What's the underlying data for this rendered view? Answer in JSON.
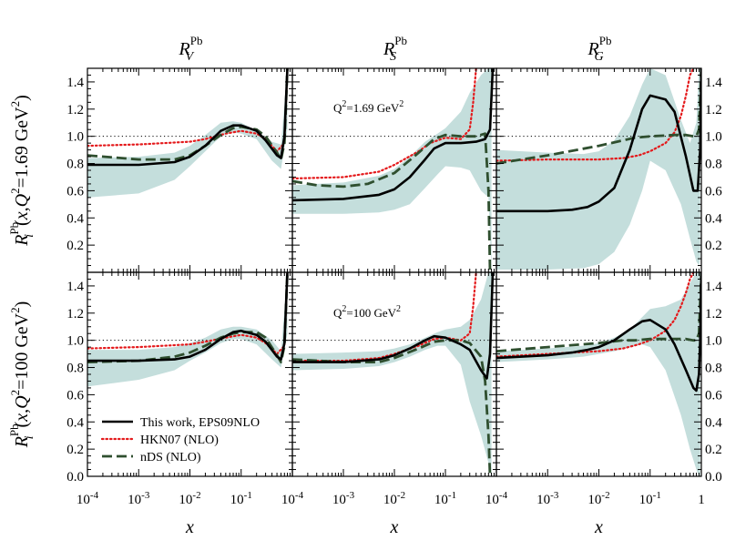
{
  "chart_data": {
    "type": "line",
    "layout": "grid 2 rows x 3 columns",
    "xscale": "log",
    "xlim": [
      0.0001,
      1
    ],
    "x_ticks": [
      {
        "b": "10",
        "e": "-4"
      },
      {
        "b": "10",
        "e": "-3"
      },
      {
        "b": "10",
        "e": "-2"
      },
      {
        "b": "10",
        "e": "-1"
      },
      {
        "b": "10",
        "e": "-4"
      }
    ],
    "x_ticks_last": [
      {
        "b": "10",
        "e": "-4"
      },
      {
        "b": "10",
        "e": "-3"
      },
      {
        "b": "10",
        "e": "-2"
      },
      {
        "b": "10",
        "e": "-1"
      },
      {
        "b": "1",
        "e": ""
      }
    ],
    "xlabel": "x",
    "ylim": [
      0,
      1.5
    ],
    "y_ticks": [
      "0.0",
      "0.2",
      "0.4",
      "0.6",
      "0.8",
      "1.0",
      "1.2",
      "1.4"
    ],
    "y_ticks_top": [
      "0.2",
      "0.4",
      "0.6",
      "0.8",
      "1.0",
      "1.2",
      "1.4"
    ],
    "reference_line_y": 1.0,
    "column_titles": [
      {
        "base": "R",
        "sup": "Pb",
        "sub": "V"
      },
      {
        "base": "R",
        "sup": "Pb",
        "sub": "S"
      },
      {
        "base": "R",
        "sup": "Pb",
        "sub": "G"
      }
    ],
    "row_labels": [
      {
        "base": "R",
        "sup": "Pb",
        "sub": "i",
        "args": "(x,Q",
        "sq": "2",
        "eq": "=1.69 GeV",
        "sq2": "2",
        "close": ")"
      },
      {
        "base": "R",
        "sup": "Pb",
        "sub": "i",
        "args": "(x,Q",
        "sq": "2",
        "eq": "=100 GeV",
        "sq2": "2",
        "close": ")"
      }
    ],
    "annotations": [
      {
        "row": 0,
        "col": 1,
        "pre": "Q",
        "sq": "2",
        "post": "=1.69 GeV",
        "sq2": "2"
      },
      {
        "row": 1,
        "col": 1,
        "pre": "Q",
        "sq": "2",
        "post": "=100 GeV",
        "sq2": "2"
      }
    ],
    "legend": {
      "position": "lower-left of bottom-left panel",
      "entries": [
        "This work, EPS09NLO",
        "HKN07 (NLO)",
        "nDS (NLO)"
      ]
    },
    "series_styles": [
      {
        "name": "This work, EPS09NLO",
        "color": "#000000",
        "dash": "solid",
        "width": 2.6
      },
      {
        "name": "HKN07 (NLO)",
        "color": "#e41a1c",
        "dash": "dotted",
        "width": 2.2
      },
      {
        "name": "nDS (NLO)",
        "color": "#2f4f2f",
        "dash": "dashed",
        "width": 2.8
      }
    ],
    "band_color": "#c4dedc",
    "panels": [
      {
        "row": 0,
        "col": 0,
        "band_x": [
          0.0001,
          0.001,
          0.005,
          0.01,
          0.02,
          0.04,
          0.07,
          0.1,
          0.2,
          0.4,
          0.6,
          0.8
        ],
        "band_upper": [
          0.84,
          0.85,
          0.88,
          0.93,
          1.01,
          1.1,
          1.11,
          1.1,
          1.04,
          0.96,
          0.94,
          1.5
        ],
        "band_lower": [
          0.55,
          0.58,
          0.68,
          0.78,
          0.89,
          1.0,
          1.03,
          1.02,
          0.98,
          0.82,
          0.76,
          1.05
        ],
        "series": [
          {
            "x": [
              0.0001,
              0.001,
              0.005,
              0.01,
              0.02,
              0.04,
              0.07,
              0.1,
              0.2,
              0.3,
              0.5,
              0.6,
              0.7,
              0.8
            ],
            "y": [
              0.79,
              0.79,
              0.81,
              0.85,
              0.93,
              1.04,
              1.08,
              1.08,
              1.04,
              0.97,
              0.86,
              0.84,
              1.0,
              1.5
            ]
          },
          {
            "x": [
              0.0001,
              0.001,
              0.01,
              0.02,
              0.05,
              0.1,
              0.2,
              0.3,
              0.5,
              0.7,
              0.8
            ],
            "y": [
              0.93,
              0.94,
              0.96,
              0.98,
              1.02,
              1.04,
              1.02,
              0.98,
              0.89,
              0.95,
              1.5
            ]
          },
          {
            "x": [
              0.0001,
              0.001,
              0.005,
              0.01,
              0.02,
              0.04,
              0.07,
              0.1,
              0.2,
              0.3,
              0.5,
              0.6,
              0.7,
              0.8
            ],
            "y": [
              0.86,
              0.83,
              0.83,
              0.86,
              0.93,
              1.01,
              1.06,
              1.07,
              1.05,
              1.0,
              0.88,
              0.83,
              0.95,
              1.5
            ]
          }
        ]
      },
      {
        "row": 0,
        "col": 1,
        "band_x": [
          0.0001,
          0.001,
          0.005,
          0.01,
          0.02,
          0.04,
          0.07,
          0.1,
          0.2,
          0.3,
          0.5,
          0.7,
          0.8
        ],
        "band_upper": [
          0.64,
          0.66,
          0.71,
          0.76,
          0.85,
          0.96,
          1.02,
          1.06,
          1.18,
          1.32,
          1.45,
          1.5,
          1.5
        ],
        "band_lower": [
          0.43,
          0.43,
          0.44,
          0.46,
          0.5,
          0.62,
          0.72,
          0.78,
          0.77,
          0.75,
          0.6,
          0.55,
          0.0
        ],
        "series": [
          {
            "x": [
              0.0001,
              0.001,
              0.005,
              0.01,
              0.02,
              0.04,
              0.06,
              0.1,
              0.2,
              0.4,
              0.6,
              0.75,
              0.85,
              0.9
            ],
            "y": [
              0.53,
              0.54,
              0.57,
              0.61,
              0.7,
              0.83,
              0.91,
              0.95,
              0.95,
              0.96,
              0.98,
              1.05,
              1.5,
              1.5
            ]
          },
          {
            "x": [
              0.0001,
              0.001,
              0.005,
              0.01,
              0.03,
              0.05,
              0.1,
              0.2,
              0.3,
              0.35,
              0.4
            ],
            "y": [
              0.69,
              0.7,
              0.74,
              0.79,
              0.89,
              0.95,
              0.99,
              0.98,
              1.05,
              1.25,
              1.5
            ]
          },
          {
            "x": [
              0.0001,
              0.0003,
              0.001,
              0.003,
              0.01,
              0.03,
              0.06,
              0.1,
              0.2,
              0.4,
              0.6,
              0.7,
              0.75,
              0.8
            ],
            "y": [
              0.67,
              0.64,
              0.63,
              0.65,
              0.73,
              0.88,
              0.98,
              1.01,
              1.0,
              1.0,
              1.02,
              0.6,
              0.0,
              0.0
            ]
          }
        ]
      },
      {
        "row": 0,
        "col": 2,
        "band_x": [
          0.0001,
          0.001,
          0.005,
          0.01,
          0.02,
          0.04,
          0.07,
          0.1,
          0.2,
          0.4,
          0.6,
          0.8,
          0.9,
          0.95
        ],
        "band_upper": [
          0.9,
          0.88,
          0.87,
          0.89,
          0.97,
          1.15,
          1.38,
          1.5,
          1.45,
          1.12,
          0.95,
          1.1,
          1.5,
          1.5
        ],
        "band_lower": [
          0.02,
          0.02,
          0.03,
          0.06,
          0.15,
          0.35,
          0.6,
          0.82,
          0.75,
          0.5,
          0.25,
          0.08,
          0.05,
          0.1
        ],
        "series": [
          {
            "x": [
              0.0001,
              0.001,
              0.003,
              0.006,
              0.01,
              0.02,
              0.04,
              0.07,
              0.1,
              0.2,
              0.3,
              0.5,
              0.7,
              0.85,
              0.95,
              1.0
            ],
            "y": [
              0.45,
              0.45,
              0.46,
              0.48,
              0.52,
              0.62,
              0.9,
              1.2,
              1.3,
              1.27,
              1.18,
              0.85,
              0.6,
              0.6,
              0.9,
              1.5
            ]
          },
          {
            "x": [
              0.0001,
              0.001,
              0.01,
              0.03,
              0.06,
              0.1,
              0.2,
              0.3,
              0.4,
              0.5,
              0.6,
              0.7
            ],
            "y": [
              0.82,
              0.83,
              0.83,
              0.84,
              0.86,
              0.89,
              0.95,
              1.03,
              1.15,
              1.3,
              1.45,
              1.5
            ]
          },
          {
            "x": [
              0.0001,
              0.001,
              0.01,
              0.03,
              0.05,
              0.1,
              0.3,
              0.5,
              0.7,
              0.8,
              0.9,
              1.0
            ],
            "y": [
              0.8,
              0.86,
              0.93,
              0.97,
              0.99,
              1.0,
              1.01,
              1.01,
              1.0,
              1.0,
              1.05,
              1.5
            ]
          }
        ]
      },
      {
        "row": 1,
        "col": 0,
        "band_x": [
          0.0001,
          0.001,
          0.005,
          0.01,
          0.02,
          0.04,
          0.07,
          0.1,
          0.2,
          0.4,
          0.6,
          0.8
        ],
        "band_upper": [
          0.93,
          0.93,
          0.95,
          0.98,
          1.02,
          1.08,
          1.1,
          1.1,
          1.08,
          1.0,
          0.92,
          1.5
        ],
        "band_lower": [
          0.66,
          0.71,
          0.78,
          0.85,
          0.91,
          0.98,
          1.01,
          1.01,
          0.97,
          0.86,
          0.8,
          1.05
        ],
        "series": [
          {
            "x": [
              0.0001,
              0.001,
              0.005,
              0.01,
              0.02,
              0.04,
              0.07,
              0.1,
              0.2,
              0.3,
              0.5,
              0.6,
              0.7,
              0.8
            ],
            "y": [
              0.85,
              0.85,
              0.86,
              0.88,
              0.93,
              1.01,
              1.06,
              1.07,
              1.04,
              0.99,
              0.88,
              0.86,
              0.98,
              1.5
            ]
          },
          {
            "x": [
              0.0001,
              0.001,
              0.01,
              0.02,
              0.05,
              0.1,
              0.2,
              0.3,
              0.5,
              0.7,
              0.8
            ],
            "y": [
              0.94,
              0.95,
              0.97,
              0.99,
              1.02,
              1.04,
              1.02,
              0.98,
              0.9,
              0.96,
              1.5
            ]
          },
          {
            "x": [
              0.0001,
              0.001,
              0.005,
              0.01,
              0.02,
              0.04,
              0.07,
              0.1,
              0.2,
              0.3,
              0.5,
              0.6,
              0.7,
              0.8
            ],
            "y": [
              0.84,
              0.85,
              0.88,
              0.91,
              0.96,
              1.02,
              1.05,
              1.06,
              1.06,
              1.02,
              0.89,
              0.84,
              0.96,
              1.5
            ]
          }
        ]
      },
      {
        "row": 1,
        "col": 1,
        "band_x": [
          0.0001,
          0.001,
          0.005,
          0.01,
          0.02,
          0.04,
          0.07,
          0.1,
          0.2,
          0.3,
          0.5,
          0.7,
          0.8
        ],
        "band_upper": [
          0.9,
          0.91,
          0.92,
          0.94,
          0.97,
          1.02,
          1.06,
          1.08,
          1.1,
          1.15,
          1.3,
          1.5,
          1.5
        ],
        "band_lower": [
          0.78,
          0.79,
          0.81,
          0.84,
          0.88,
          0.93,
          0.96,
          0.96,
          0.82,
          0.55,
          0.3,
          0.1,
          0.0
        ],
        "series": [
          {
            "x": [
              0.0001,
              0.001,
              0.005,
              0.01,
              0.02,
              0.04,
              0.06,
              0.1,
              0.2,
              0.3,
              0.5,
              0.65,
              0.75,
              0.85,
              0.9
            ],
            "y": [
              0.84,
              0.84,
              0.86,
              0.89,
              0.94,
              1.0,
              1.03,
              1.02,
              0.97,
              0.93,
              0.78,
              0.72,
              0.9,
              1.5,
              1.5
            ]
          },
          {
            "x": [
              0.0001,
              0.001,
              0.005,
              0.01,
              0.03,
              0.06,
              0.1,
              0.2,
              0.3,
              0.35,
              0.4
            ],
            "y": [
              0.85,
              0.85,
              0.87,
              0.9,
              0.96,
              1.01,
              1.02,
              1.0,
              1.05,
              1.25,
              1.5
            ]
          },
          {
            "x": [
              0.0001,
              0.001,
              0.005,
              0.01,
              0.03,
              0.06,
              0.1,
              0.2,
              0.3,
              0.5,
              0.6,
              0.7,
              0.75,
              0.8
            ],
            "y": [
              0.86,
              0.84,
              0.84,
              0.87,
              0.94,
              0.99,
              1.0,
              1.0,
              0.98,
              0.88,
              0.7,
              0.3,
              0.0,
              0.0
            ]
          }
        ]
      },
      {
        "row": 1,
        "col": 2,
        "band_x": [
          0.0001,
          0.001,
          0.005,
          0.01,
          0.02,
          0.04,
          0.07,
          0.1,
          0.2,
          0.4,
          0.6,
          0.8,
          0.9,
          0.95
        ],
        "band_upper": [
          0.92,
          0.94,
          0.96,
          0.98,
          1.02,
          1.08,
          1.17,
          1.23,
          1.25,
          1.3,
          1.42,
          1.5,
          1.5,
          1.5
        ],
        "band_lower": [
          0.84,
          0.86,
          0.88,
          0.9,
          0.92,
          0.95,
          0.97,
          0.95,
          0.78,
          0.45,
          0.2,
          0.05,
          0.0,
          0.0
        ],
        "series": [
          {
            "x": [
              0.0001,
              0.001,
              0.003,
              0.006,
              0.01,
              0.02,
              0.04,
              0.07,
              0.1,
              0.2,
              0.3,
              0.5,
              0.7,
              0.8,
              0.9,
              0.95,
              1.0
            ],
            "y": [
              0.87,
              0.89,
              0.91,
              0.93,
              0.95,
              1.0,
              1.08,
              1.14,
              1.15,
              1.08,
              0.97,
              0.78,
              0.65,
              0.63,
              0.75,
              1.0,
              1.5
            ]
          },
          {
            "x": [
              0.0001,
              0.001,
              0.01,
              0.03,
              0.06,
              0.1,
              0.2,
              0.3,
              0.4,
              0.5,
              0.6,
              0.7
            ],
            "y": [
              0.88,
              0.9,
              0.92,
              0.94,
              0.97,
              1.0,
              1.07,
              1.15,
              1.25,
              1.35,
              1.45,
              1.5
            ]
          },
          {
            "x": [
              0.0001,
              0.001,
              0.01,
              0.03,
              0.05,
              0.1,
              0.3,
              0.5,
              0.7,
              0.8,
              0.9,
              1.0
            ],
            "y": [
              0.92,
              0.95,
              0.98,
              1.0,
              1.0,
              1.01,
              1.01,
              1.01,
              1.0,
              1.0,
              1.05,
              1.5
            ]
          }
        ]
      }
    ]
  }
}
